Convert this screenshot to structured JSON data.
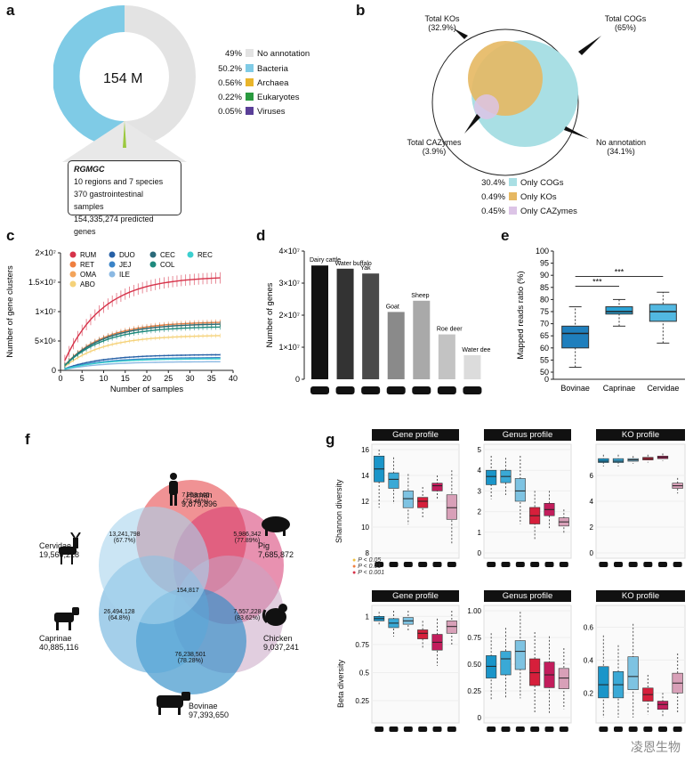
{
  "panels": {
    "a": "a",
    "b": "b",
    "c": "c",
    "d": "d",
    "e": "e",
    "f": "f",
    "g": "g"
  },
  "a": {
    "center_label": "154 M",
    "legend": [
      {
        "pct": "49%",
        "label": "No annotation",
        "color": "#e3e3e3"
      },
      {
        "pct": "50.2%",
        "label": "Bacteria",
        "color": "#7fcbe6"
      },
      {
        "pct": "0.56%",
        "label": "Archaea",
        "color": "#e9b52b"
      },
      {
        "pct": "0.22%",
        "label": "Eukaryotes",
        "color": "#2a9a3f"
      },
      {
        "pct": "0.05%",
        "label": "Viruses",
        "color": "#5a3f98"
      }
    ],
    "box_title": "RGMGC",
    "box_lines": [
      "10 regions and 7 species",
      "370 gastrointestinal samples",
      "154,335,274 predicted genes"
    ]
  },
  "b": {
    "labels": {
      "kos": "Total KOs",
      "kos_pct": "(32.9%)",
      "cogs": "Total COGs",
      "cogs_pct": "(65%)",
      "cazy": "Total CAZymes",
      "cazy_pct": "(3.9%)",
      "none": "No annotation",
      "none_pct": "(34.1%)"
    },
    "legend": [
      {
        "pct": "30.4%",
        "label": "Only COGs",
        "color": "#a9dfe4"
      },
      {
        "pct": "0.49%",
        "label": "Only KOs",
        "color": "#e6b862"
      },
      {
        "pct": "0.45%",
        "label": "Only CAZymes",
        "color": "#dcc4e6"
      }
    ]
  },
  "chart_data": [
    {
      "panel": "c",
      "type": "line",
      "title": "",
      "xlabel": "Number of samples",
      "ylabel": "Number of gene clusters",
      "x_ticks": [
        "0",
        "5",
        "10",
        "15",
        "20",
        "25",
        "30",
        "35",
        "40"
      ],
      "y_ticks": [
        "0",
        "5×10⁶",
        "1×10⁷",
        "1.5×10⁷",
        "2×10⁷"
      ],
      "xlim": [
        0,
        40
      ],
      "ylim": [
        0,
        20000000
      ],
      "series": [
        {
          "name": "RUM",
          "color": "#d6334a",
          "plateau": 16000000,
          "n": 37
        },
        {
          "name": "RET",
          "color": "#ef7f40",
          "plateau": 8300000,
          "n": 37
        },
        {
          "name": "OMA",
          "color": "#f3a45b",
          "plateau": 8000000,
          "n": 37
        },
        {
          "name": "ABO",
          "color": "#f5d27a",
          "plateau": 6000000,
          "n": 37
        },
        {
          "name": "DUO",
          "color": "#2760a6",
          "plateau": 2700000,
          "n": 37
        },
        {
          "name": "JEJ",
          "color": "#3b84c8",
          "plateau": 2200000,
          "n": 37
        },
        {
          "name": "ILE",
          "color": "#8bb9e3",
          "plateau": 1500000,
          "n": 37
        },
        {
          "name": "CEC",
          "color": "#2a6a7a",
          "plateau": 8000000,
          "n": 37
        },
        {
          "name": "COL",
          "color": "#1e8a7e",
          "plateau": 7500000,
          "n": 37
        },
        {
          "name": "REC",
          "color": "#3ccfcf",
          "plateau": 2000000,
          "n": 37
        }
      ]
    },
    {
      "panel": "d",
      "type": "bar",
      "ylabel": "Number of genes",
      "y_ticks": [
        "0",
        "1×10⁷",
        "2×10⁷",
        "3×10⁷",
        "4×10⁷"
      ],
      "ylim": [
        0,
        40000000
      ],
      "categories": [
        "Dairy cattle",
        "Water buffalo",
        "Yak",
        "Goat",
        "Sheep",
        "Roe deer",
        "Water deer"
      ],
      "values": [
        35500000,
        34500000,
        33000000,
        21000000,
        24500000,
        14000000,
        7500000
      ],
      "colors": [
        "#111111",
        "#333333",
        "#4a4a4a",
        "#8a8a8a",
        "#a9a9a9",
        "#c3c3c3",
        "#dcdcdc"
      ]
    },
    {
      "panel": "e",
      "type": "box",
      "ylabel": "Mapped reads ratio (%)",
      "y_ticks": [
        "0",
        "50",
        "55",
        "60",
        "65",
        "70",
        "75",
        "80",
        "85",
        "90",
        "95",
        "100"
      ],
      "categories": [
        "Bovinae",
        "Caprinae",
        "Cervidae"
      ],
      "boxes": [
        {
          "min": 52,
          "q1": 60,
          "median": 66,
          "q3": 69,
          "max": 77
        },
        {
          "min": 69,
          "q1": 74,
          "median": 75,
          "q3": 77,
          "max": 80
        },
        {
          "min": 62,
          "q1": 71,
          "median": 75,
          "q3": 78,
          "max": 83
        }
      ],
      "sig": [
        "***",
        "***"
      ],
      "colors": [
        "#1f7fbd",
        "#2aa3d6",
        "#52b8e1"
      ]
    }
  ],
  "f": {
    "sets": [
      {
        "name": "Human",
        "count": "9,879,896"
      },
      {
        "name": "Pig",
        "count": "7,685,872"
      },
      {
        "name": "Chicken",
        "count": "9,037,241"
      },
      {
        "name": "Bovinae",
        "count": "97,393,650"
      },
      {
        "name": "Caprinae",
        "count": "40,885,116"
      },
      {
        "name": "Cervidae",
        "count": "19,560,218"
      }
    ],
    "overlaps": [
      {
        "v": "7,258,165",
        "p": "(73.46%)"
      },
      {
        "v": "5,986,342",
        "p": "(77.89%)"
      },
      {
        "v": "7,557,228",
        "p": "(83.62%)"
      },
      {
        "v": "76,238,501",
        "p": "(78.28%)"
      },
      {
        "v": "26,494,128",
        "p": "(64.8%)"
      },
      {
        "v": "13,241,798",
        "p": "(67.7%)"
      }
    ],
    "core": "154,817"
  },
  "g": {
    "titles": [
      "Gene profile",
      "Genus profile",
      "KO profile"
    ],
    "y_shannon": "Shannon diversity",
    "y_beta": "Beta diversity",
    "pvals": [
      "P < 0.05",
      "P < 0.01",
      "P < 0.001"
    ],
    "shannon_gene_ticks": [
      "8",
      "10",
      "12",
      "14",
      "16"
    ],
    "shannon_genus_ticks": [
      "0",
      "1",
      "2",
      "3",
      "4",
      "5"
    ],
    "shannon_ko_ticks": [
      "0",
      "2",
      "4",
      "6"
    ],
    "beta_gene_ticks": [
      "0.25",
      "0.5",
      "0.75",
      "1"
    ],
    "beta_genus_ticks": [
      "0",
      "0.25",
      "0.50",
      "0.75",
      "1.00"
    ],
    "beta_ko_ticks": [
      "0.2",
      "0.4",
      "0.6"
    ]
  },
  "watermark": "凌恩生物"
}
